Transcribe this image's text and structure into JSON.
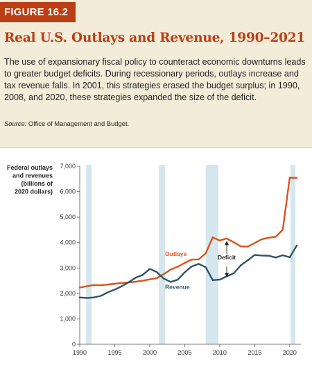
{
  "figure": {
    "badge": "FIGURE 16.2",
    "title": "Real U.S. Outlays and Revenue, 1990–2021",
    "caption": "The use of expansionary fiscal policy to counteract economic downturns leads to greater budget deficits. During recessionary periods, outlays increase and tax revenue falls. In 2001, this strategies erased the budget surplus; in 1990, 2008, and 2020, these strategies expanded the size of the deficit.",
    "source_label": "Source:",
    "source_text": "Office of Management and Budget."
  },
  "colors": {
    "accent": "#bb3e14",
    "header_bg": "#f3ecd9",
    "outlays": "#d9531e",
    "revenue": "#2f5468",
    "recession": "#d6e6ef"
  },
  "chart_data": {
    "type": "line",
    "ylabel": "Federal outlays and revenues (billions of 2020 dollars)",
    "ylabel_lines": [
      "Federal outlays",
      "and revenues",
      "(billions of",
      "2020 dollars)"
    ],
    "xlim": [
      1990,
      2021
    ],
    "ylim": [
      0,
      7000
    ],
    "x_ticks": [
      1990,
      1995,
      2000,
      2005,
      2010,
      2015,
      2020
    ],
    "y_ticks": [
      0,
      1000,
      2000,
      3000,
      4000,
      5000,
      6000,
      7000
    ],
    "y_tick_labels": [
      "0",
      "1,000",
      "2,000",
      "3,000",
      "4,000",
      "5,000",
      "6,000",
      "7,000"
    ],
    "recessions": [
      [
        1990.9,
        1991.7
      ],
      [
        2001.3,
        2002.2
      ],
      [
        2008.0,
        2009.8
      ],
      [
        2020.1,
        2020.8
      ]
    ],
    "x": [
      1990,
      1991,
      1992,
      1993,
      1994,
      1995,
      1996,
      1997,
      1998,
      1999,
      2000,
      2001,
      2002,
      2003,
      2004,
      2005,
      2006,
      2007,
      2008,
      2009,
      2010,
      2011,
      2012,
      2013,
      2014,
      2015,
      2016,
      2017,
      2018,
      2019,
      2020,
      2021
    ],
    "series": [
      {
        "name": "Outlays",
        "values": [
          2230,
          2280,
          2330,
          2320,
          2350,
          2380,
          2410,
          2430,
          2460,
          2500,
          2550,
          2600,
          2760,
          2940,
          3050,
          3200,
          3330,
          3340,
          3580,
          4200,
          4080,
          4160,
          4010,
          3850,
          3840,
          3980,
          4130,
          4190,
          4230,
          4500,
          6550,
          6540
        ]
      },
      {
        "name": "Revenue",
        "values": [
          1840,
          1820,
          1840,
          1900,
          2040,
          2150,
          2280,
          2440,
          2620,
          2730,
          2960,
          2840,
          2580,
          2450,
          2540,
          2830,
          3060,
          3160,
          3030,
          2520,
          2540,
          2670,
          2790,
          3100,
          3300,
          3510,
          3490,
          3480,
          3410,
          3500,
          3420,
          3880
        ]
      }
    ],
    "annotations": {
      "deficit": "Deficit"
    }
  }
}
